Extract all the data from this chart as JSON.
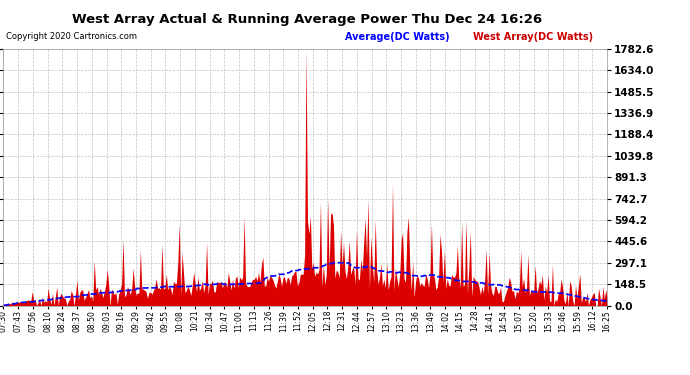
{
  "title": "West Array Actual & Running Average Power Thu Dec 24 16:26",
  "copyright": "Copyright 2020 Cartronics.com",
  "legend_avg": "Average(DC Watts)",
  "legend_west": "West Array(DC Watts)",
  "ymax": 1782.6,
  "yticks": [
    0.0,
    148.5,
    297.1,
    445.6,
    594.2,
    742.7,
    891.3,
    1039.8,
    1188.4,
    1336.9,
    1485.5,
    1634.0,
    1782.6
  ],
  "background_color": "#ffffff",
  "grid_color": "#bbbbbb",
  "bar_color": "#dd0000",
  "avg_line_color": "#0000ff",
  "title_color": "#000000",
  "copyright_color": "#000000",
  "legend_avg_color": "#0000ff",
  "legend_west_color": "#cc0000",
  "x_labels": [
    "07:30",
    "07:43",
    "07:56",
    "08:10",
    "08:24",
    "08:37",
    "08:50",
    "09:03",
    "09:16",
    "09:29",
    "09:42",
    "09:55",
    "10:08",
    "10:21",
    "10:34",
    "10:47",
    "11:00",
    "11:13",
    "11:26",
    "11:39",
    "11:52",
    "12:05",
    "12:18",
    "12:31",
    "12:44",
    "12:57",
    "13:10",
    "13:23",
    "13:36",
    "13:49",
    "14:02",
    "14:15",
    "14:28",
    "14:41",
    "14:54",
    "15:07",
    "15:20",
    "15:33",
    "15:46",
    "15:59",
    "16:12",
    "16:25"
  ],
  "n_points": 420
}
